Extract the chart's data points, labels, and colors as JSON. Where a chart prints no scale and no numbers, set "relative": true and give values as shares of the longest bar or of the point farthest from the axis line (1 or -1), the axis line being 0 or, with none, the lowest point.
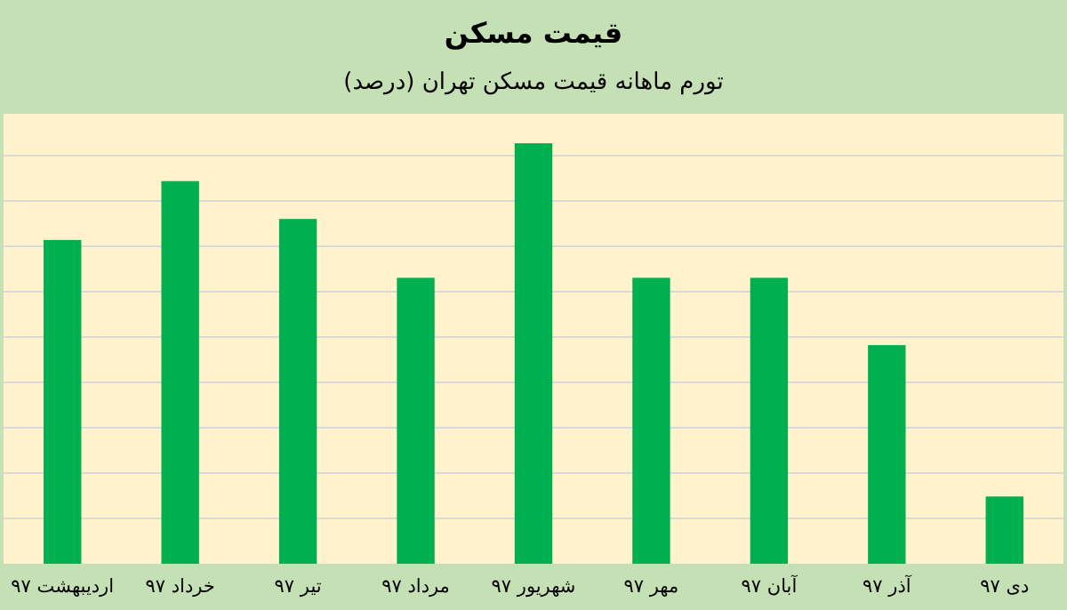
{
  "chart_data": {
    "type": "bar",
    "title": "قیمت مسکن",
    "subtitle": "تورم ماهانه قیمت مسکن تهران (درصد)",
    "categories": [
      "اردیبهشت ۹۷",
      "خرداد ۹۷",
      "تیر ۹۷",
      "مرداد ۹۷",
      "شهریور ۹۷",
      "مهر ۹۷",
      "آبان ۹۷",
      "آذر ۹۷",
      "دی ۹۷"
    ],
    "values": [
      0.77,
      0.91,
      0.82,
      0.68,
      1,
      0.68,
      0.68,
      0.52,
      0.16
    ],
    "color": "#00b050",
    "relative": true,
    "grid": "y"
  }
}
